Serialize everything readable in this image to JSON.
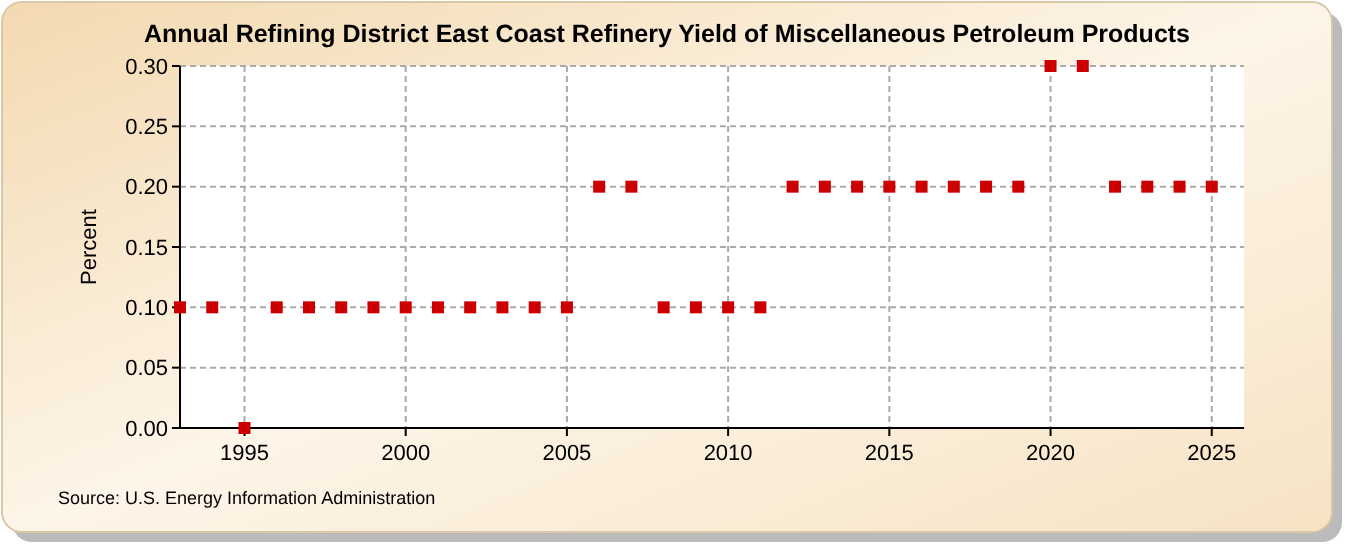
{
  "chart_data": {
    "type": "scatter",
    "title": "Annual Refining District East Coast Refinery Yield of Miscellaneous Petroleum Products",
    "ylabel": "Percent",
    "x": [
      1993,
      1994,
      1995,
      1996,
      1997,
      1998,
      1999,
      2000,
      2001,
      2002,
      2003,
      2004,
      2005,
      2006,
      2007,
      2008,
      2009,
      2010,
      2011,
      2012,
      2013,
      2014,
      2015,
      2016,
      2017,
      2018,
      2019,
      2020,
      2021,
      2022,
      2023,
      2024,
      2025
    ],
    "series": [
      {
        "color": "#cc0000",
        "values": [
          0.1,
          0.1,
          0.0,
          0.1,
          0.1,
          0.1,
          0.1,
          0.1,
          0.1,
          0.1,
          0.1,
          0.1,
          0.1,
          0.2,
          0.2,
          0.1,
          0.1,
          0.1,
          0.1,
          0.2,
          0.2,
          0.2,
          0.2,
          0.2,
          0.2,
          0.2,
          0.2,
          0.3,
          0.3,
          0.2,
          0.2,
          0.2,
          0.2
        ]
      }
    ],
    "xlim": [
      1993,
      2026
    ],
    "xticks": [
      1995,
      2000,
      2005,
      2010,
      2015,
      2020,
      2025
    ],
    "ylim": [
      0,
      0.3
    ],
    "yticks": [
      {
        "value": 0,
        "label": "0.00"
      },
      {
        "value": 0.05,
        "label": "0.05"
      },
      {
        "value": 0.1,
        "label": "0.10"
      },
      {
        "value": 0.15,
        "label": "0.15"
      },
      {
        "value": 0.2,
        "label": "0.20"
      },
      {
        "value": 0.25,
        "label": "0.25"
      },
      {
        "value": 0.3,
        "label": "0.30"
      }
    ],
    "grid": true,
    "marker": "square",
    "annotations": [
      "Source: U.S. Energy Information Administration"
    ]
  }
}
